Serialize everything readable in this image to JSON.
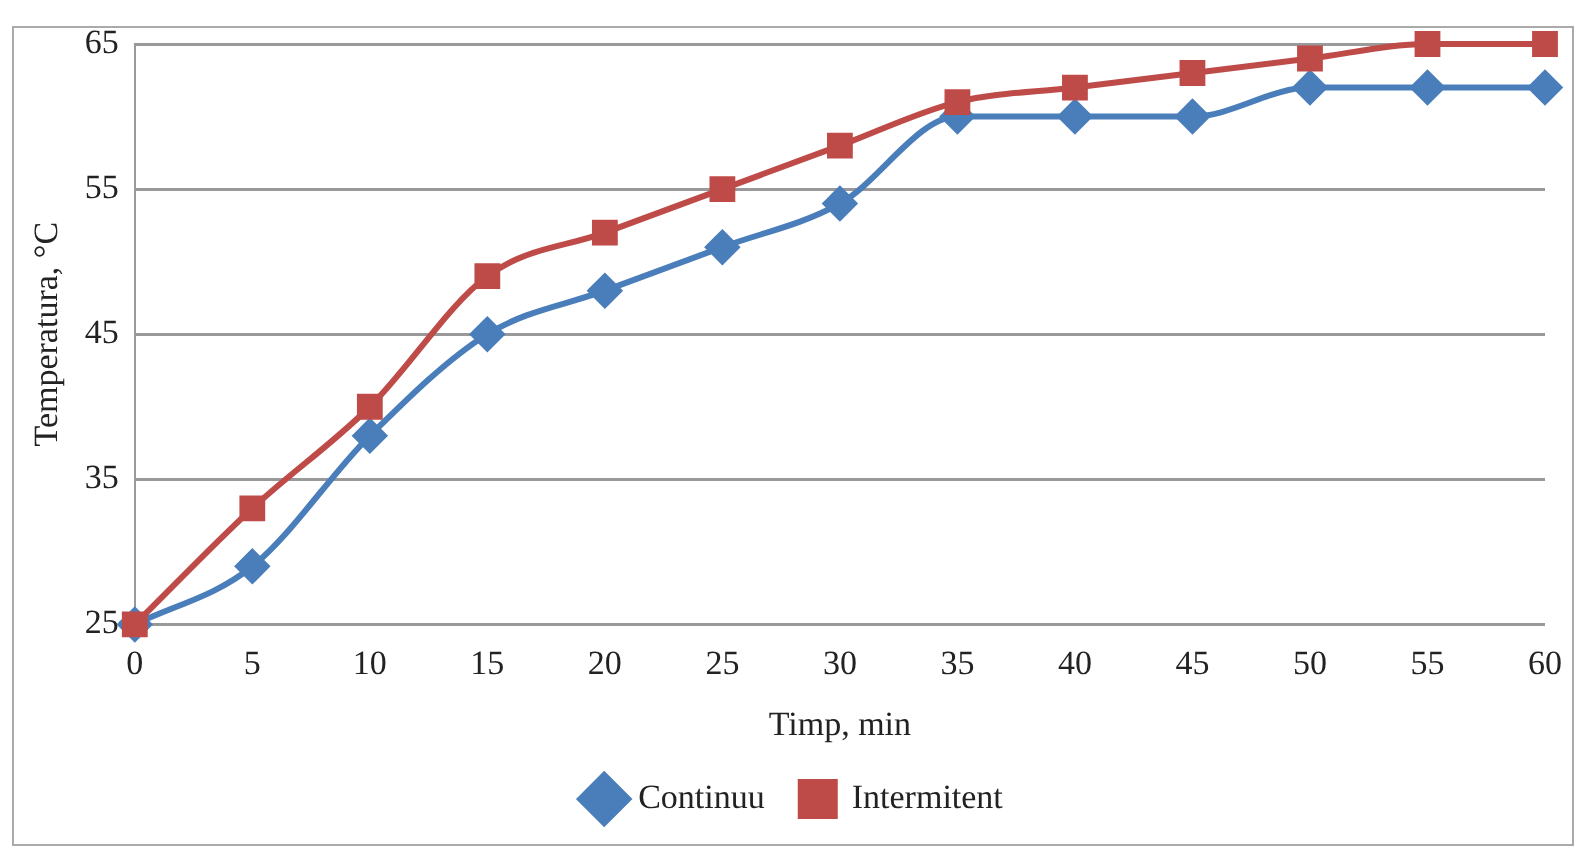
{
  "chart_data": {
    "type": "line",
    "xlabel": "Timp, min",
    "ylabel": "Temperatura, °C",
    "categories": [
      "0",
      "5",
      "10",
      "15",
      "20",
      "25",
      "30",
      "35",
      "40",
      "45",
      "50",
      "55",
      "60"
    ],
    "series": [
      {
        "name": "Continuu",
        "color": "#4a7ebb",
        "marker": "diamond",
        "values": [
          25,
          29,
          38,
          45,
          48,
          51,
          54,
          60,
          60,
          60,
          62,
          62,
          62
        ]
      },
      {
        "name": "Intermitent",
        "color": "#be4b48",
        "marker": "square",
        "values": [
          25,
          33,
          40,
          49,
          52,
          55,
          58,
          61,
          62,
          63,
          64,
          65,
          65
        ]
      }
    ],
    "ylim": [
      25,
      65
    ],
    "yticks": [
      25,
      35,
      45,
      55,
      65
    ],
    "grid": "y",
    "legend": "bottom",
    "line_style": "solid"
  }
}
